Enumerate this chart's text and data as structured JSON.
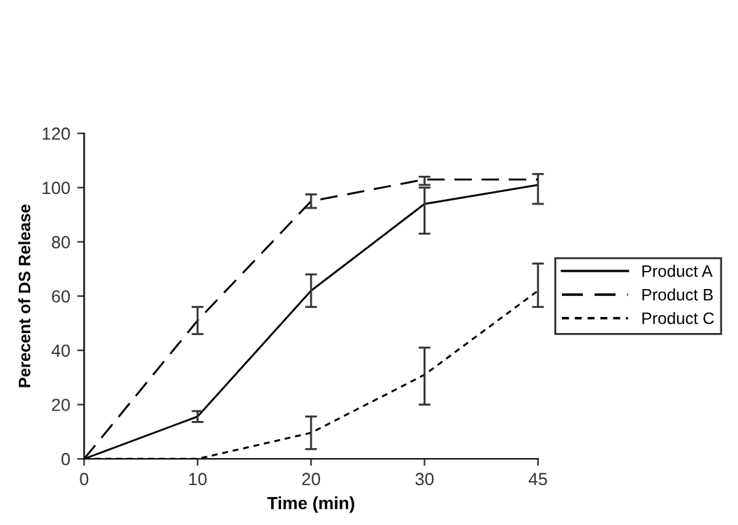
{
  "chart_data": {
    "type": "line",
    "xlabel": "Time (min)",
    "ylabel": "Perecent of DS Release",
    "categories": [
      "0",
      "10",
      "20",
      "30",
      "45"
    ],
    "ylim": [
      0,
      120
    ],
    "yticks": [
      0,
      20,
      40,
      60,
      80,
      100,
      120
    ],
    "grid": false,
    "legend": "right",
    "marker": "none",
    "series": [
      {
        "name": "Product A",
        "color": "#000000",
        "line_style": "solid",
        "values": [
          0,
          15.6,
          62,
          94,
          101
        ],
        "errors": [
          null,
          2,
          6,
          [
            83,
            100
          ],
          [
            94,
            105
          ]
        ]
      },
      {
        "name": "Product B",
        "color": "#000000",
        "line_style": "dashed",
        "values": [
          0,
          51,
          95,
          103,
          103
        ],
        "errors": [
          null,
          5,
          2.5,
          [
            101,
            104
          ],
          null
        ]
      },
      {
        "name": "Product C",
        "color": "#000000",
        "line_style": "dotted",
        "values": [
          0,
          0,
          9.6,
          31,
          62
        ],
        "errors": [
          null,
          null,
          6,
          [
            20,
            41
          ],
          [
            56,
            72
          ]
        ]
      }
    ]
  }
}
